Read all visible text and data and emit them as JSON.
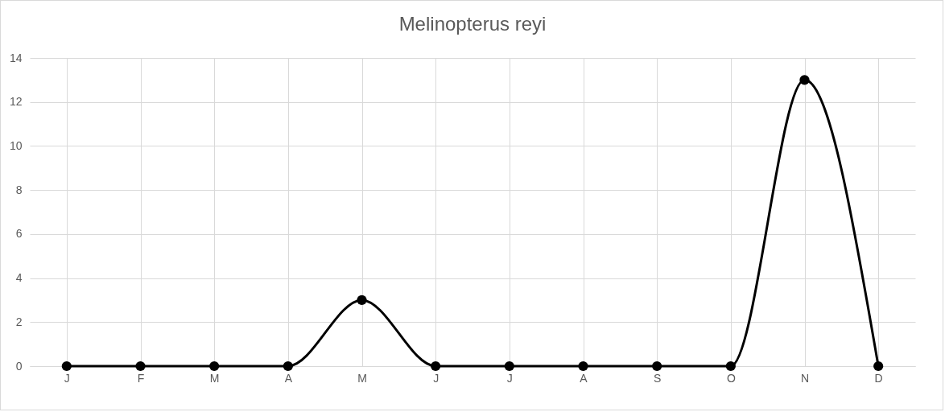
{
  "chart_data": {
    "type": "line",
    "title": "Melinopterus reyi",
    "categories": [
      "J",
      "F",
      "M",
      "A",
      "M",
      "J",
      "J",
      "A",
      "S",
      "O",
      "N",
      "D"
    ],
    "series": [
      {
        "color": "#000000",
        "values": [
          0,
          0,
          0,
          0,
          3,
          0,
          0,
          0,
          0,
          0,
          13,
          0
        ]
      }
    ],
    "ylim": [
      0,
      14
    ],
    "yticks": [
      0,
      2,
      4,
      6,
      8,
      10,
      12,
      14
    ],
    "grid": true,
    "marker": "circle",
    "line_style": "solid"
  }
}
